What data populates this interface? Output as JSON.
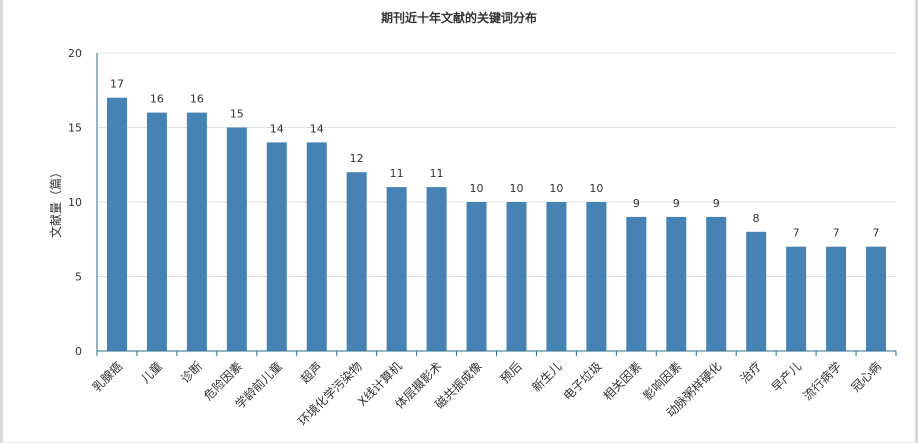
{
  "chart_data": {
    "type": "bar",
    "title": "期刊近十年文献的关键词分布",
    "ylabel": "文献量（篇）",
    "xlabel": "",
    "ylim": [
      0,
      20
    ],
    "yticks": [
      0,
      5,
      10,
      15,
      20
    ],
    "grid": true,
    "bar_color": "#4682b4",
    "categories": [
      "乳腺癌",
      "儿童",
      "诊断",
      "危险因素",
      "学龄前儿童",
      "超声",
      "环境化学污染物",
      "X线计算机",
      "体层摄影术",
      "磁共振成像",
      "预后",
      "新生儿",
      "电子垃圾",
      "相关因素",
      "影响因素",
      "动脉粥样硬化",
      "治疗",
      "早产儿",
      "流行病学",
      "冠心病"
    ],
    "values": [
      17,
      16,
      16,
      15,
      14,
      14,
      12,
      11,
      11,
      10,
      10,
      10,
      10,
      9,
      9,
      9,
      8,
      7,
      7,
      7
    ]
  }
}
